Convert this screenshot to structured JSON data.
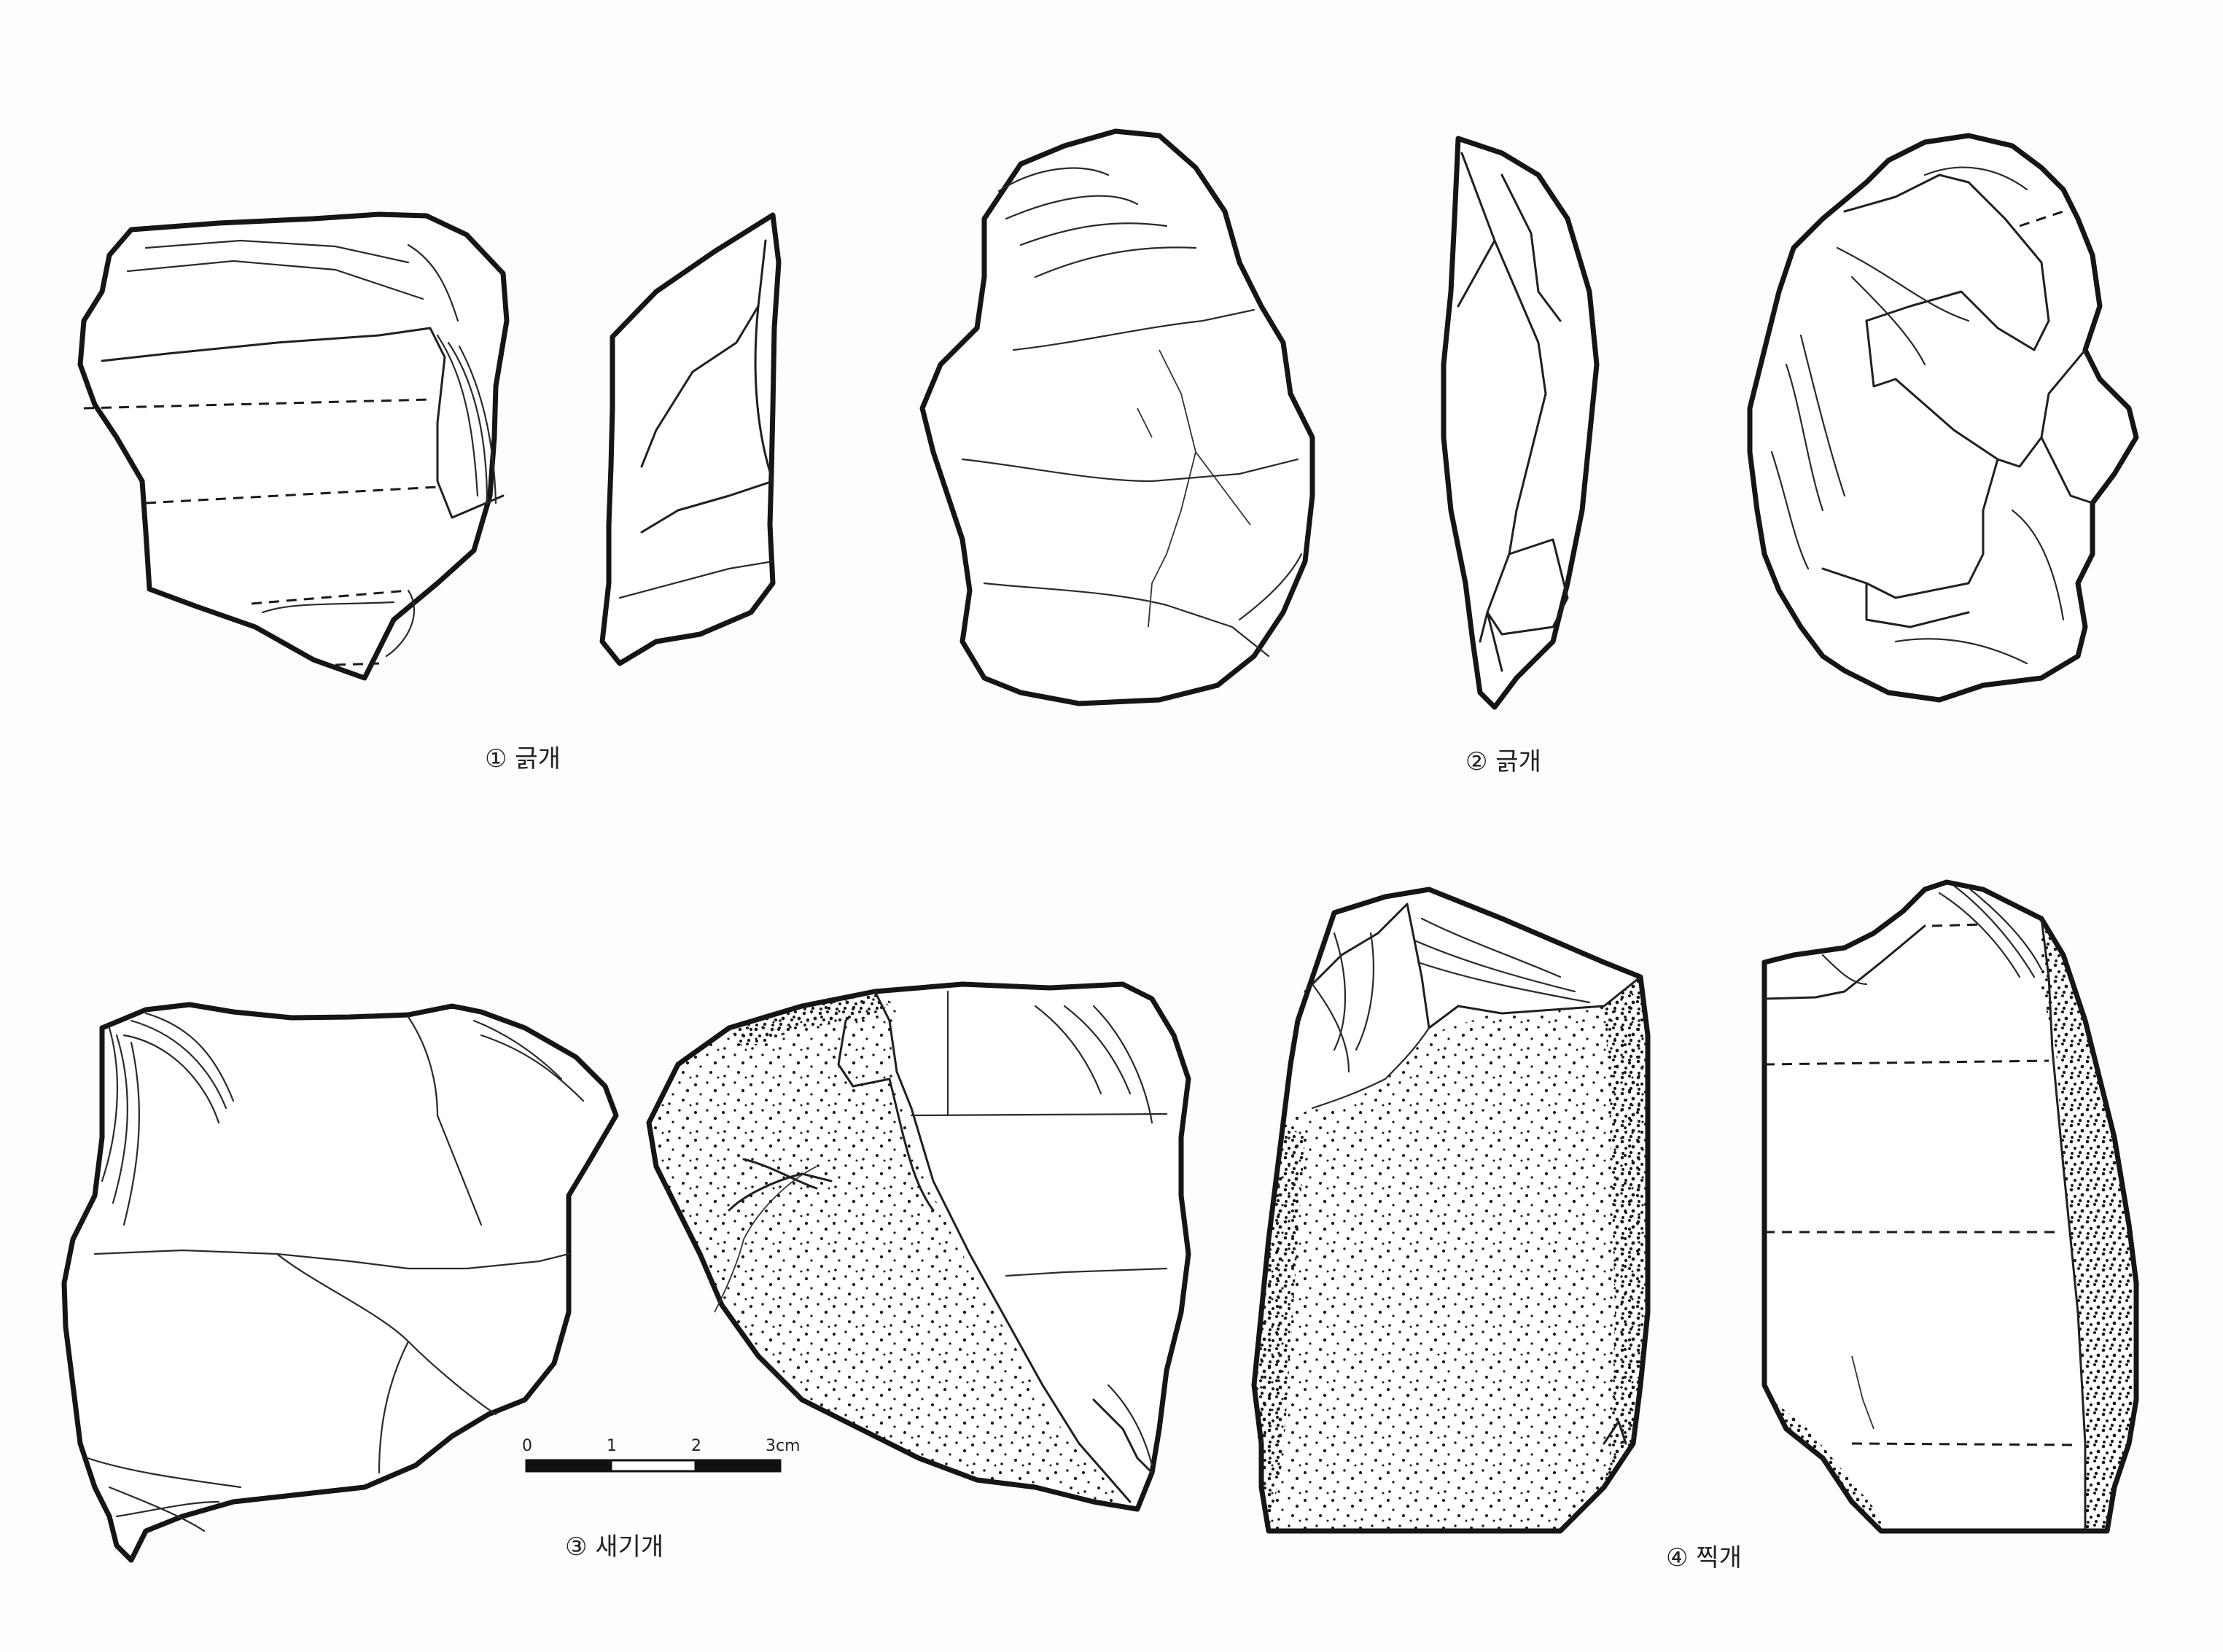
{
  "captions": {
    "item1": "① 긁개",
    "item2": "② 긁개",
    "item3": "③ 새기개",
    "item4": "④ 찍개"
  },
  "scale_bar": {
    "tick_0": "0",
    "tick_1": "1",
    "tick_2": "2",
    "tick_3": "3cm"
  }
}
